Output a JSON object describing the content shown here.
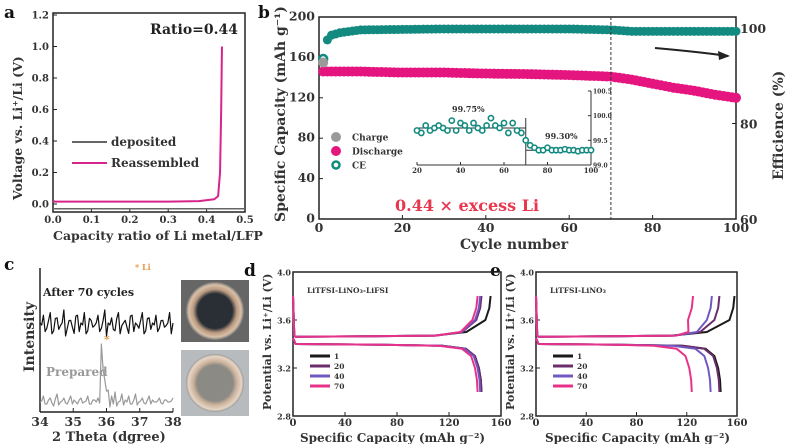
{
  "colors": {
    "discharge": "#e5157f",
    "charge": "#9a9a9a",
    "ce": "#138a80",
    "deposited": "#666666",
    "reassembled": "#d6248a",
    "annotation_red": "#e8384f",
    "li_marker": "#e39a4a",
    "after": "#111111",
    "prepared": "#999999",
    "cycle1": "#1a1a1a",
    "cycle20": "#6b2d6b",
    "cycle40": "#7058c0",
    "cycle70": "#e8328a"
  },
  "chart_data": [
    {
      "panel": "a",
      "type": "line",
      "xlabel": "Capacity ratio of Li metal/LFP",
      "ylabel": "Voltage vs. Li⁺/Li (V)",
      "xlim": [
        0,
        0.5
      ],
      "ylim": [
        -0.05,
        1.2
      ],
      "xticks": [
        "0.0",
        "0.1",
        "0.2",
        "0.3",
        "0.4",
        "0.5"
      ],
      "yticks": [
        "0.0",
        "0.2",
        "0.4",
        "0.6",
        "0.8",
        "1.0",
        "1.2"
      ],
      "annotation": "Ratio=0.44",
      "legend_placement": "center-left",
      "series": [
        {
          "name": "deposited",
          "points": [
            [
              0,
              -0.03
            ],
            [
              0.5,
              -0.03
            ]
          ]
        },
        {
          "name": "Reassembled",
          "points": [
            [
              0,
              0.02
            ],
            [
              0.005,
              0.015
            ],
            [
              0.1,
              0.015
            ],
            [
              0.3,
              0.015
            ],
            [
              0.38,
              0.018
            ],
            [
              0.42,
              0.03
            ],
            [
              0.43,
              0.05
            ],
            [
              0.435,
              0.2
            ],
            [
              0.438,
              0.6
            ],
            [
              0.44,
              1.0
            ]
          ]
        }
      ]
    },
    {
      "panel": "b",
      "type": "scatter",
      "xlabel": "Cycle number",
      "ylabel": "Specific Capacity (mAh g⁻¹)",
      "y2label": "Efficience (%)",
      "xlim": [
        0,
        100
      ],
      "ylim": [
        0,
        200
      ],
      "y2lim": [
        60,
        102.3
      ],
      "xticks": [
        "0",
        "20",
        "40",
        "60",
        "80",
        "100"
      ],
      "yticks": [
        "0",
        "40",
        "80",
        "120",
        "160",
        "200"
      ],
      "y2ticks": [
        "60",
        "80",
        "100"
      ],
      "annotation": "0.44 × excess Li",
      "marker_line_cycle": 70,
      "legend_placement": "center-left",
      "series": [
        {
          "name": "Charge",
          "axis": "left",
          "points": [
            [
              1,
              155
            ],
            [
              2,
              148
            ]
          ]
        },
        {
          "name": "Discharge",
          "axis": "left",
          "points": [
            [
              1,
              146
            ],
            [
              5,
              146
            ],
            [
              10,
              146
            ],
            [
              20,
              145
            ],
            [
              30,
              145
            ],
            [
              40,
              144
            ],
            [
              50,
              143.5
            ],
            [
              60,
              142.5
            ],
            [
              70,
              141
            ],
            [
              75,
              138
            ],
            [
              80,
              134
            ],
            [
              85,
              130
            ],
            [
              90,
              127
            ],
            [
              95,
              123
            ],
            [
              100,
              120
            ]
          ]
        },
        {
          "name": "CE",
          "axis": "right",
          "points": [
            [
              1,
              93.5
            ],
            [
              2,
              97.5
            ],
            [
              3,
              98.5
            ],
            [
              5,
              99
            ],
            [
              10,
              99.6
            ],
            [
              20,
              99.7
            ],
            [
              30,
              99.8
            ],
            [
              40,
              99.8
            ],
            [
              50,
              99.8
            ],
            [
              60,
              99.8
            ],
            [
              70,
              99.6
            ],
            [
              75,
              99.3
            ],
            [
              80,
              99.3
            ],
            [
              90,
              99.3
            ],
            [
              100,
              99.3
            ]
          ]
        }
      ],
      "inset": {
        "xlim": [
          20,
          100
        ],
        "ylim": [
          99.0,
          100.5
        ],
        "xticks": [
          "20",
          "40",
          "60",
          "80",
          "100"
        ],
        "yticks": [
          "99.0",
          "99.5",
          "100.0",
          "100.5"
        ],
        "labels": [
          "99.75%",
          "99.30%"
        ],
        "points": [
          [
            20,
            99.7
          ],
          [
            22,
            99.65
          ],
          [
            24,
            99.8
          ],
          [
            26,
            99.7
          ],
          [
            28,
            99.75
          ],
          [
            30,
            99.8
          ],
          [
            32,
            99.75
          ],
          [
            34,
            99.7
          ],
          [
            36,
            99.9
          ],
          [
            38,
            99.7
          ],
          [
            40,
            99.85
          ],
          [
            42,
            99.8
          ],
          [
            44,
            99.7
          ],
          [
            46,
            99.85
          ],
          [
            48,
            99.75
          ],
          [
            50,
            99.7
          ],
          [
            52,
            99.8
          ],
          [
            54,
            99.95
          ],
          [
            56,
            99.8
          ],
          [
            58,
            99.75
          ],
          [
            60,
            99.85
          ],
          [
            62,
            99.65
          ],
          [
            64,
            99.85
          ],
          [
            66,
            99.7
          ],
          [
            68,
            99.65
          ],
          [
            70,
            99.5
          ],
          [
            72,
            99.4
          ],
          [
            74,
            99.35
          ],
          [
            76,
            99.3
          ],
          [
            78,
            99.3
          ],
          [
            80,
            99.35
          ],
          [
            82,
            99.3
          ],
          [
            84,
            99.3
          ],
          [
            86,
            99.3
          ],
          [
            88,
            99.32
          ],
          [
            90,
            99.3
          ],
          [
            92,
            99.3
          ],
          [
            94,
            99.28
          ],
          [
            96,
            99.3
          ],
          [
            98,
            99.3
          ],
          [
            100,
            99.3
          ]
        ]
      }
    },
    {
      "panel": "c",
      "type": "line",
      "xlabel": "2 Theta (dgree)",
      "ylabel": "Intensity",
      "xlim": [
        34,
        38
      ],
      "xticks": [
        "34",
        "35",
        "36",
        "37",
        "38"
      ],
      "marker_legend": "* Li",
      "peak_marker": "*",
      "series": [
        {
          "name": "After 70 cycles",
          "values": [
            0.5,
            0.8,
            0.3,
            0.9,
            0.2,
            0.7,
            0.4,
            1,
            0.3,
            0.6,
            0.1,
            0.8,
            0.5,
            0.9,
            0.2,
            0.6,
            0.4,
            0.8,
            0.3,
            1,
            0.5,
            0.7,
            0.2,
            0.9,
            0.4,
            0.6,
            0.1,
            0.8,
            0.5,
            0.3,
            0.9,
            0.2,
            0.7,
            0.5,
            0.8,
            0.3,
            0.6,
            0.4,
            0.9,
            0.5
          ]
        },
        {
          "name": "Prepared",
          "values": [
            0.3,
            0.6,
            0.2,
            0.5,
            0.1,
            0.7,
            0.3,
            0.5,
            0.2,
            0.6,
            0.4,
            0.2,
            0.5,
            0.3,
            0.6,
            0.2,
            0.4,
            0.5,
            3.2,
            1.4,
            0.9,
            0.6,
            0.8,
            0.3,
            0.7,
            0.4,
            0.6,
            0.2,
            0.7,
            0.3,
            0.5,
            0.2,
            0.6,
            0.4,
            0.3,
            0.5,
            0.2,
            0.4,
            0.3,
            0.5
          ]
        }
      ]
    },
    {
      "panel": "d",
      "type": "line",
      "title": "LiTFSI-LiNO₃-LiFSI",
      "xlabel": "Specific Capacity (mAh g⁻²)",
      "ylabel": "Potential vs. Li⁺/Li (V)",
      "xlim": [
        0,
        160
      ],
      "ylim": [
        2.8,
        4.0
      ],
      "xticks": [
        "0",
        "40",
        "80",
        "120",
        "160"
      ],
      "yticks": [
        "2.8",
        "3.2",
        "3.6",
        "4.0"
      ],
      "legend_placement": "center-left",
      "series": [
        {
          "name": "1",
          "charge_capacity": 152,
          "discharge_capacity": 145
        },
        {
          "name": "20",
          "charge_capacity": 145,
          "discharge_capacity": 145
        },
        {
          "name": "40",
          "charge_capacity": 144,
          "discharge_capacity": 144
        },
        {
          "name": "70",
          "charge_capacity": 142,
          "discharge_capacity": 142
        }
      ]
    },
    {
      "panel": "e",
      "type": "line",
      "title": "LiTFSI-LiNO₃",
      "xlabel": "Specific Capacity (mAh g⁻²)",
      "ylabel": "Potential vs. Li⁺/Li (V)",
      "xlim": [
        0,
        160
      ],
      "ylim": [
        2.8,
        4.0
      ],
      "xticks": [
        "0",
        "40",
        "80",
        "120",
        "160"
      ],
      "yticks": [
        "2.8",
        "3.2",
        "3.6",
        "4.0"
      ],
      "legend_placement": "center-left",
      "series": [
        {
          "name": "1",
          "charge_capacity": 158,
          "discharge_capacity": 147
        },
        {
          "name": "20",
          "charge_capacity": 146,
          "discharge_capacity": 146
        },
        {
          "name": "40",
          "charge_capacity": 140,
          "discharge_capacity": 139
        },
        {
          "name": "70",
          "charge_capacity": 125,
          "discharge_capacity": 124
        }
      ]
    }
  ],
  "panels": {
    "a": "a",
    "b": "b",
    "c": "c",
    "d": "d",
    "e": "e"
  }
}
